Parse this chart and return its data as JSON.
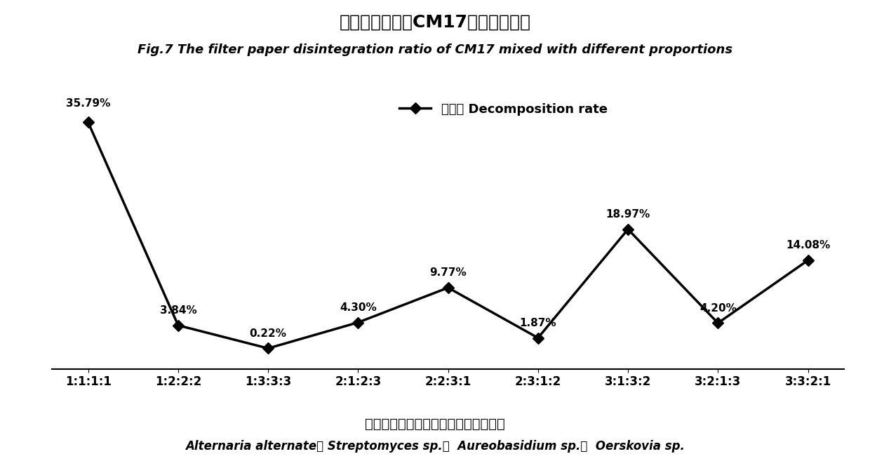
{
  "title_cn": "不同混合比例的CM17对滤纸的降解",
  "title_en": "Fig.7 The filter paper disintegration ratio of CM17 mixed with different proportions",
  "categories": [
    "1:1:1:1",
    "1:2:2:2",
    "1:3:3:3",
    "2:1:2:3",
    "2:2:3:1",
    "2:3:1:2",
    "3:1:3:2",
    "3:2:1:3",
    "3:3:2:1"
  ],
  "values": [
    35.79,
    3.84,
    0.22,
    4.3,
    9.77,
    1.87,
    18.97,
    4.2,
    14.08
  ],
  "labels": [
    "35.79%",
    "3.84%",
    "0.22%",
    "4.30%",
    "9.77%",
    "1.87%",
    "18.97%",
    "4.20%",
    "14.08%"
  ],
  "legend_label_cn": "降解率",
  "legend_label_en": " Decomposition rate",
  "line_color": "#000000",
  "marker_style": "D",
  "marker_size": 8,
  "line_width": 2.5,
  "footer_cn": "钉格孢菌：钉霞菌：短棗霞菌：厄氏菌",
  "footer_en": "Alternaria alternate： Streptomyces sp.：  Aureobasidium sp.：  Oerskovia sp.",
  "background_color": "#ffffff",
  "ylim": [
    -3,
    42
  ],
  "title_cn_fontsize": 18,
  "title_en_fontsize": 13,
  "tick_fontsize": 12,
  "label_fontsize": 11,
  "footer_cn_fontsize": 14,
  "footer_en_fontsize": 12
}
